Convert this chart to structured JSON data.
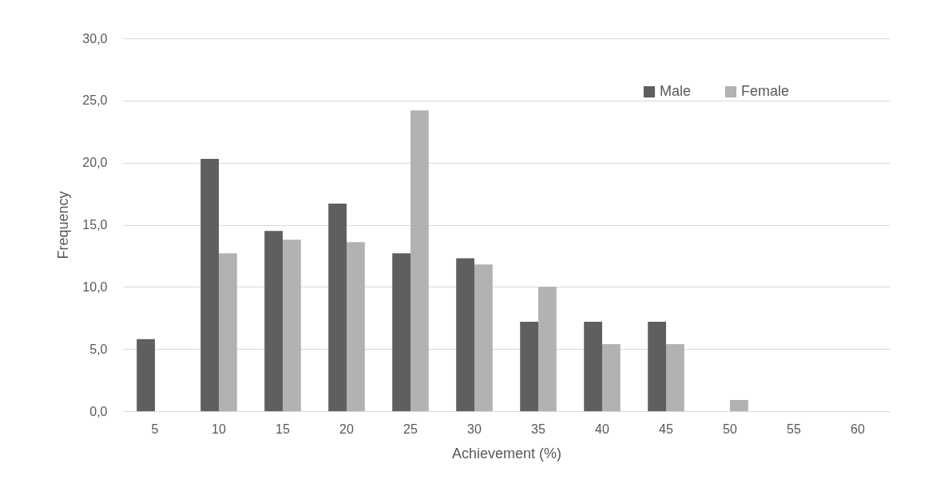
{
  "chart_data": {
    "type": "bar",
    "xlabel": "Achievement (%)",
    "ylabel": "Frequency",
    "categories": [
      "5",
      "10",
      "15",
      "20",
      "25",
      "30",
      "35",
      "40",
      "45",
      "50",
      "55",
      "60"
    ],
    "series": [
      {
        "name": "Male",
        "color": "#5f5f5f",
        "values": [
          5.8,
          20.3,
          14.5,
          16.7,
          12.7,
          12.3,
          7.2,
          7.2,
          7.2,
          0,
          0,
          0
        ]
      },
      {
        "name": "Female",
        "color": "#b2b2b2",
        "values": [
          0,
          12.7,
          13.8,
          13.6,
          24.2,
          11.8,
          10.0,
          5.4,
          5.4,
          0.9,
          0,
          0
        ]
      }
    ],
    "ylim": [
      0,
      30
    ],
    "yticks": [
      {
        "value": 0,
        "label": "0,0"
      },
      {
        "value": 5,
        "label": "5,0"
      },
      {
        "value": 10,
        "label": "10,0"
      },
      {
        "value": 15,
        "label": "15,0"
      },
      {
        "value": 20,
        "label": "20,0"
      },
      {
        "value": 25,
        "label": "25,0"
      },
      {
        "value": 30,
        "label": "30,0"
      }
    ],
    "grid": "y",
    "legend": "top right"
  }
}
